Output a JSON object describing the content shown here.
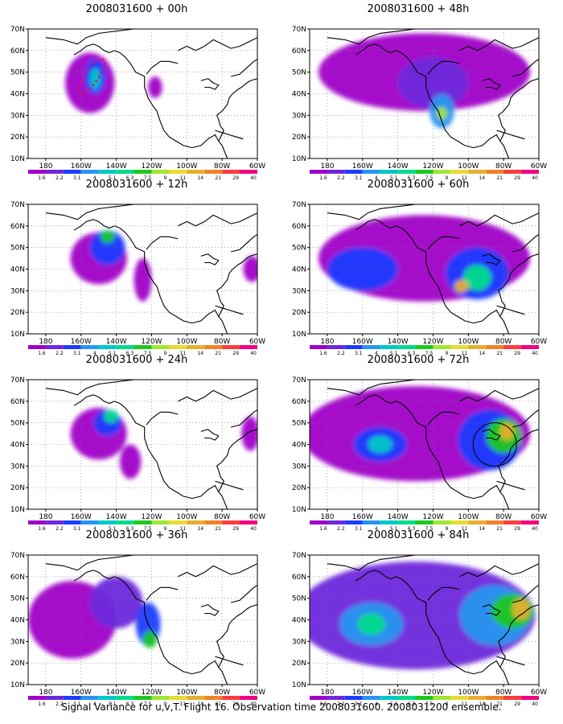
{
  "caption": "Signal Variance for u,v,T. Flight 16. Observation time 2008031600. 2008031200 ensemble.",
  "palette": [
    "#a000c8",
    "#6e28dc",
    "#1e3cff",
    "#2896f0",
    "#00c8c8",
    "#00dc8c",
    "#1ec81e",
    "#a0e632",
    "#e6dc32",
    "#e6af2d",
    "#f08228",
    "#fa3c3c",
    "#f00082"
  ],
  "colorbar_labels": [
    "1.6",
    "2.2",
    "3.1",
    "4",
    "5.1",
    "6.3",
    "7.5",
    "9",
    "11",
    "14",
    "21",
    "29",
    "40"
  ],
  "lon_ticks": [
    "180",
    "160W",
    "140W",
    "120W",
    "100W",
    "80W",
    "60W"
  ],
  "lat_ticks": [
    "70N",
    "60N",
    "50N",
    "40N",
    "30N",
    "20N",
    "10N"
  ],
  "extent": {
    "lon_min": 170,
    "lon_max": 300,
    "lat_min": 10,
    "lat_max": 70
  },
  "panels": [
    {
      "title": "2008031600 + 00h",
      "blobs": [
        [
          205,
          45,
          14,
          14,
          0
        ],
        [
          208,
          48,
          6,
          8,
          2
        ],
        [
          208,
          47,
          3,
          5,
          4
        ],
        [
          242,
          43,
          4,
          5,
          0
        ]
      ],
      "dashed": true
    },
    {
      "title": "2008031600 + 12h",
      "blobs": [
        [
          210,
          45,
          16,
          12,
          0
        ],
        [
          215,
          50,
          10,
          8,
          2
        ],
        [
          215,
          55,
          4,
          3,
          6
        ],
        [
          235,
          35,
          5,
          10,
          0
        ],
        [
          297,
          40,
          5,
          6,
          0
        ]
      ]
    },
    {
      "title": "2008031600 + 24h",
      "blobs": [
        [
          210,
          45,
          16,
          12,
          0
        ],
        [
          215,
          50,
          8,
          6,
          2
        ],
        [
          217,
          53,
          4,
          3,
          5
        ],
        [
          228,
          32,
          6,
          8,
          0
        ],
        [
          296,
          45,
          5,
          8,
          0
        ]
      ]
    },
    {
      "title": "2008031600 + 36h",
      "blobs": [
        [
          195,
          40,
          25,
          18,
          0
        ],
        [
          220,
          48,
          15,
          12,
          1
        ],
        [
          238,
          38,
          7,
          10,
          2
        ],
        [
          239,
          31,
          4,
          4,
          6
        ]
      ]
    },
    {
      "title": "2008031600 + 48h",
      "blobs": [
        [
          235,
          50,
          60,
          18,
          0
        ],
        [
          240,
          45,
          20,
          12,
          1
        ],
        [
          245,
          32,
          7,
          8,
          3
        ],
        [
          245,
          31,
          3,
          3,
          7
        ]
      ]
    },
    {
      "title": "2008031600 + 60h",
      "blobs": [
        [
          235,
          45,
          60,
          20,
          0
        ],
        [
          200,
          40,
          20,
          10,
          2
        ],
        [
          265,
          38,
          18,
          12,
          2
        ],
        [
          265,
          36,
          8,
          6,
          5
        ],
        [
          256,
          32,
          4,
          3,
          9
        ]
      ]
    },
    {
      "title": "2008031600 + 72h",
      "blobs": [
        [
          230,
          45,
          65,
          22,
          0
        ],
        [
          210,
          40,
          15,
          8,
          2
        ],
        [
          210,
          40,
          7,
          4,
          4
        ],
        [
          272,
          42,
          18,
          14,
          2
        ],
        [
          280,
          44,
          10,
          8,
          6
        ],
        [
          282,
          46,
          4,
          4,
          9
        ]
      ],
      "circle": [
        275,
        40
      ]
    },
    {
      "title": "2008031600 + 84h",
      "blobs": [
        [
          230,
          42,
          68,
          25,
          1
        ],
        [
          205,
          38,
          18,
          10,
          3
        ],
        [
          205,
          38,
          8,
          5,
          5
        ],
        [
          275,
          42,
          20,
          14,
          3
        ],
        [
          285,
          44,
          12,
          8,
          6
        ],
        [
          290,
          45,
          5,
          5,
          9
        ]
      ]
    }
  ]
}
